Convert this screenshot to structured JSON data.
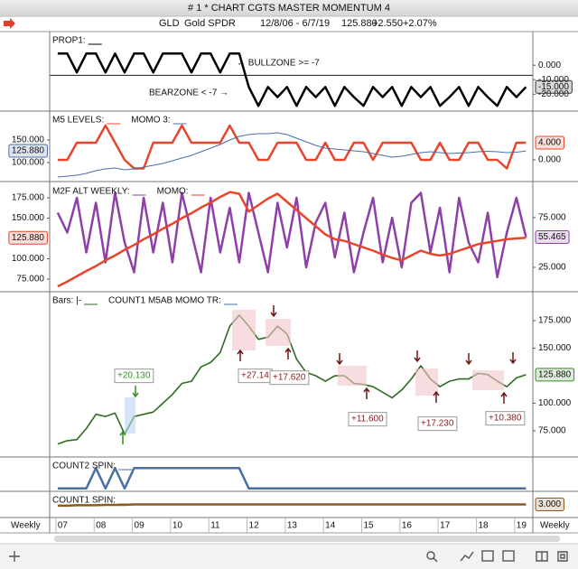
{
  "window": {
    "title": "# 1 * CHART CGTS MASTER MOMENTUM 4"
  },
  "header": {
    "symbol": "GLD",
    "name": "Gold SPDR",
    "range": "12/8/06 - 6/7/19",
    "last": "125.880",
    "change": "+2.550",
    "change_pct": "+2.07%"
  },
  "x": [
    2007,
    2007.25,
    2007.5,
    2007.75,
    2008,
    2008.25,
    2008.5,
    2008.75,
    2009,
    2009.25,
    2009.5,
    2009.75,
    2010,
    2010.25,
    2010.5,
    2010.75,
    2011,
    2011.25,
    2011.5,
    2011.75,
    2012,
    2012.25,
    2012.5,
    2012.75,
    2013,
    2013.25,
    2013.5,
    2013.75,
    2014,
    2014.25,
    2014.5,
    2014.75,
    2015,
    2015.25,
    2015.5,
    2015.75,
    2016,
    2016.25,
    2016.5,
    2016.75,
    2017,
    2017.25,
    2017.5,
    2017.75,
    2018,
    2018.25,
    2018.5,
    2018.75,
    2019,
    2019.25
  ],
  "xlim": [
    2006.79,
    2019.43
  ],
  "xticks": [
    {
      "value": 2007,
      "label": "07"
    },
    {
      "value": 2008,
      "label": "08"
    },
    {
      "value": 2009,
      "label": "09"
    },
    {
      "value": 2010,
      "label": "10"
    },
    {
      "value": 2011,
      "label": "11"
    },
    {
      "value": 2012,
      "label": "12"
    },
    {
      "value": 2013,
      "label": "13"
    },
    {
      "value": 2014,
      "label": "14"
    },
    {
      "value": 2015,
      "label": "15"
    },
    {
      "value": 2016,
      "label": "16"
    },
    {
      "value": 2017,
      "label": "17"
    },
    {
      "value": 2018,
      "label": "18"
    },
    {
      "value": 2019,
      "label": "19"
    }
  ],
  "periodicity": "Weekly",
  "panels": [
    {
      "legend": [
        "PROP1:"
      ],
      "y2lim": [
        -31,
        22.5
      ],
      "y2ticks": [
        {
          "value": 0,
          "label": "0.000"
        },
        {
          "value": -10,
          "label": "-10.000"
        },
        {
          "value": -20,
          "label": "-20.000"
        }
      ],
      "right_marker": {
        "value": -15,
        "label": "-15.000",
        "color": "#333333"
      },
      "threshold": -7,
      "annotations": [
        "← BULLZONE >= -7",
        "BEARZONE < -7 →"
      ],
      "series": [
        {
          "color": "#000000",
          "axis": "y2",
          "width": 2.5,
          "values": [
            8,
            8,
            -5,
            8,
            8,
            -5,
            8,
            -5,
            8,
            8,
            -5,
            8,
            8,
            8,
            -5,
            8,
            8,
            -5,
            8,
            8,
            -15,
            -28,
            -15,
            -22,
            -15,
            -28,
            -15,
            -22,
            -15,
            -28,
            -15,
            -22,
            -28,
            -15,
            -22,
            -15,
            -28,
            -15,
            -22,
            -15,
            -28,
            -22,
            -15,
            -28,
            -15,
            -22,
            -28,
            -15,
            -22,
            -15
          ]
        }
      ]
    },
    {
      "legend": [
        "M5 LEVELS:",
        "MOMO 3:"
      ],
      "ylim": [
        60,
        212
      ],
      "y2lim": [
        -4.84,
        11.16
      ],
      "yticks": [
        {
          "value": 150,
          "label": "150.000"
        },
        {
          "value": 100,
          "label": "100.000"
        }
      ],
      "y2ticks": [
        {
          "value": 0,
          "label": "0.000"
        }
      ],
      "left_marker": {
        "value": 125.88,
        "label": "125.880",
        "color": "#4a6fa5"
      },
      "right_marker": {
        "value": 4,
        "label": "4.000",
        "color": "#e8452c"
      },
      "series": [
        {
          "color": "#e8452c",
          "axis": "y2",
          "width": 2.5,
          "values": [
            0,
            0,
            4,
            4,
            4,
            8,
            4,
            0,
            -2,
            -2,
            4,
            4,
            4,
            8,
            4,
            4,
            4,
            4,
            8,
            4,
            4,
            0,
            0,
            4,
            4,
            4,
            0,
            0,
            4,
            0,
            0,
            4,
            4,
            0,
            4,
            4,
            4,
            4,
            0,
            0,
            4,
            0,
            0,
            4,
            4,
            0,
            0,
            -2,
            4,
            4
          ]
        },
        {
          "color": "#4a6fa5",
          "width": 1,
          "values": [
            68,
            70,
            72,
            76,
            82,
            86,
            88,
            84,
            86,
            90,
            94,
            98,
            104,
            110,
            116,
            124,
            132,
            140,
            150,
            158,
            162,
            164,
            164,
            166,
            162,
            154,
            146,
            138,
            132,
            130,
            128,
            126,
            124,
            120,
            116,
            112,
            114,
            118,
            122,
            124,
            122,
            120,
            121,
            122,
            124,
            125,
            124,
            122,
            123,
            125.88
          ]
        }
      ]
    },
    {
      "legend": [
        "M2F ALT WEEKLY:",
        "MOMO:"
      ],
      "ylim": [
        60.6,
        192.8
      ],
      "y2lim": [
        1.4,
        109.5
      ],
      "yticks": [
        {
          "value": 175,
          "label": "175.000"
        },
        {
          "value": 150,
          "label": "150.000"
        },
        {
          "value": 100,
          "label": "100.000"
        },
        {
          "value": 75,
          "label": "75.000"
        }
      ],
      "y2ticks": [
        {
          "value": 75,
          "label": "75.000"
        },
        {
          "value": 25,
          "label": "25.000"
        }
      ],
      "left_marker": {
        "value": 125.88,
        "label": "125.880",
        "color": "#e8452c"
      },
      "right_marker": {
        "value": 55.465,
        "label": "55.465",
        "color": "#8e3fa8"
      },
      "series": [
        {
          "color": "#8e3fa8",
          "axis": "y2",
          "width": 2.5,
          "values": [
            80,
            60,
            95,
            40,
            90,
            30,
            100,
            50,
            20,
            95,
            40,
            90,
            30,
            100,
            60,
            20,
            95,
            40,
            85,
            30,
            100,
            60,
            20,
            90,
            45,
            95,
            25,
            70,
            90,
            35,
            80,
            20,
            60,
            95,
            30,
            75,
            25,
            90,
            100,
            40,
            85,
            20,
            95,
            50,
            30,
            80,
            15,
            60,
            95,
            55.465
          ]
        },
        {
          "color": "#e8452c",
          "width": 2.5,
          "values": [
            66,
            72,
            78.5,
            85,
            91,
            98,
            104,
            111,
            117,
            124,
            130,
            137,
            143,
            150,
            156,
            163,
            169,
            176,
            182,
            180,
            158,
            166,
            174,
            180,
            170,
            160,
            150,
            140,
            130,
            124,
            122,
            118,
            114,
            110,
            105,
            101,
            98,
            104,
            110,
            106,
            104,
            106,
            110,
            114,
            118,
            120,
            122,
            124,
            125,
            125.88
          ]
        }
      ]
    },
    {
      "legend": [
        "Bars: |-",
        "COUNT1 M5AB MOMO TR:"
      ],
      "y2lim": [
        52,
        200.4
      ],
      "y2ticks": [
        {
          "value": 175,
          "label": "175.000"
        },
        {
          "value": 150,
          "label": "150.000"
        },
        {
          "value": 100,
          "label": "100.000"
        },
        {
          "value": 75,
          "label": "75.000"
        }
      ],
      "right_marker": {
        "value": 125.88,
        "label": "125.880",
        "color": "#3a8a2a"
      },
      "annotations": [
        "+20.130",
        "+27.14",
        "+17.620",
        "+11.600",
        "+17.230",
        "+10.380"
      ],
      "series": [
        {
          "color": "#2e6b1f",
          "axis": "y2",
          "width": 1.6,
          "values": [
            63,
            66,
            67,
            77,
            90,
            88,
            91,
            72,
            88,
            90,
            92,
            100,
            108,
            118,
            120,
            133,
            137,
            146,
            170,
            180,
            170,
            158,
            160,
            170,
            163,
            140,
            128,
            125,
            120,
            125,
            125,
            118,
            117,
            115,
            110,
            105,
            112,
            122,
            134,
            122,
            115,
            120,
            122,
            122,
            127,
            126,
            120,
            115,
            123,
            125.88
          ]
        }
      ]
    },
    {
      "legend": [
        "COUNT2 SPIN:"
      ],
      "y2lim": [
        -0.1,
        1.5
      ],
      "series": [
        {
          "color": "#4a6fa5",
          "axis": "y2",
          "width": 2.5,
          "values": [
            0,
            0,
            0,
            0,
            1,
            0,
            1,
            0,
            1,
            1,
            1,
            1,
            1,
            1,
            1,
            1,
            1,
            1,
            1,
            1,
            0,
            0,
            0,
            0,
            0,
            0,
            0,
            0,
            0,
            0,
            0,
            0,
            0,
            0,
            0,
            0,
            0,
            0,
            0,
            0,
            0,
            0,
            0,
            0,
            0,
            0,
            0,
            0,
            0,
            0
          ]
        }
      ]
    },
    {
      "legend": [
        "COUNT1 SPIN:"
      ],
      "y2lim": [
        0,
        6
      ],
      "right_marker": {
        "value": 3,
        "label": "3.000",
        "color": "#8b5a1e"
      },
      "series": [
        {
          "color": "#8b5a1e",
          "axis": "y2",
          "width": 2.5,
          "values": [
            2.7,
            2.7,
            2.8,
            2.8,
            2.8,
            2.9,
            2.9,
            2.9,
            3,
            3,
            3,
            3,
            3,
            3,
            3,
            3,
            3,
            3,
            3,
            3,
            3,
            3,
            3,
            3,
            3,
            3,
            3,
            3,
            3,
            3,
            3,
            3,
            3,
            3,
            3,
            3,
            3,
            3,
            3,
            3,
            3,
            3,
            3,
            3,
            3,
            3,
            3,
            3,
            3,
            3
          ]
        }
      ]
    }
  ]
}
